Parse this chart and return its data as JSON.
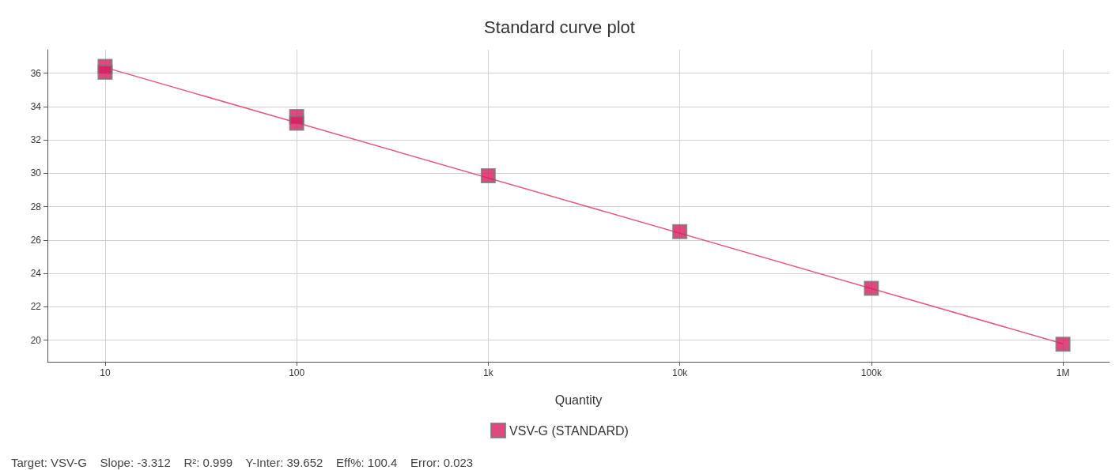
{
  "chart_data": {
    "type": "scatter",
    "title": "Standard curve plot",
    "xlabel": "Quantity",
    "log": "x",
    "xlim": [
      5,
      1750000
    ],
    "ylim": [
      18.7,
      37.4
    ],
    "xticks": [
      10,
      100,
      {
        "value": 1000,
        "label": "1k"
      },
      {
        "value": 10000,
        "label": "10k"
      },
      {
        "value": 100000,
        "label": "100k"
      },
      {
        "value": 1000000,
        "label": "1M"
      }
    ],
    "yticks": [
      20,
      22,
      24,
      26,
      28,
      30,
      32,
      34,
      36
    ],
    "grid": true,
    "legend": "bottom",
    "series": [
      {
        "name": "VSV-G (STANDARD)",
        "marker": "square",
        "color": "#d81b60",
        "x": [
          10,
          10,
          100,
          100,
          1000,
          10000,
          100000,
          1000000
        ],
        "values": [
          36.4,
          36.05,
          33.4,
          33.0,
          29.85,
          26.5,
          23.1,
          19.75
        ]
      },
      {
        "type": "line",
        "marker": "none",
        "color": "#e8567f",
        "x": [
          10,
          1000000
        ],
        "values": [
          36.34,
          19.78
        ]
      }
    ],
    "annotations": [
      "Target: VSV-G    Slope: -3.312    R²: 0.999    Y-Inter: 39.652    Eff%: 100.4    Error: 0.023"
    ]
  }
}
